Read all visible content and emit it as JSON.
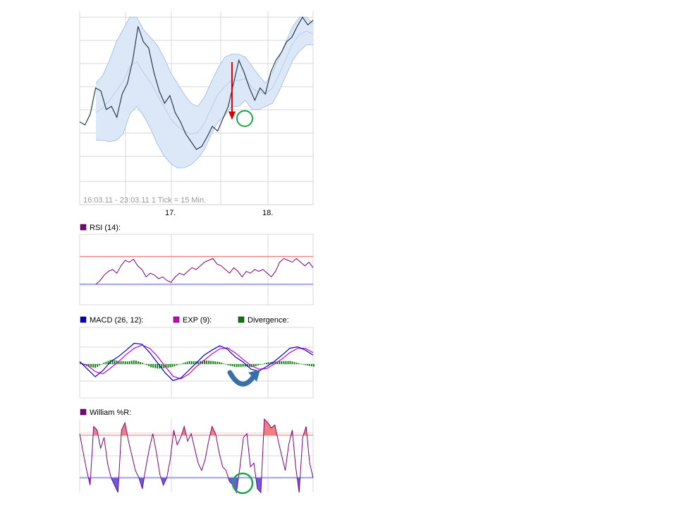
{
  "chart_data": [
    {
      "type": "line",
      "panel": "price",
      "footer": "16:03.11 - 23:03.11   1 Tick = 15 Min.",
      "x_tick_labels": [
        "17.",
        "18."
      ],
      "grid": true,
      "series": [
        {
          "role": "price",
          "color": "#2b3a4a",
          "values": [
            0.3,
            0.28,
            0.35,
            0.52,
            0.5,
            0.38,
            0.4,
            0.33,
            0.48,
            0.55,
            0.7,
            0.92,
            0.82,
            0.78,
            0.62,
            0.5,
            0.42,
            0.47,
            0.36,
            0.3,
            0.22,
            0.17,
            0.12,
            0.14,
            0.2,
            0.27,
            0.24,
            0.32,
            0.4,
            0.55,
            0.7,
            0.62,
            0.52,
            0.44,
            0.52,
            0.48,
            0.62,
            0.7,
            0.75,
            0.82,
            0.85,
            0.92,
            0.98,
            0.93,
            0.96
          ]
        },
        {
          "role": "band-upper",
          "color": "#a9c4e8",
          "values": [
            0.55,
            0.6,
            0.7,
            0.82,
            0.9,
            0.98,
            0.98,
            0.9,
            0.85,
            0.8,
            0.72,
            0.62,
            0.55,
            0.48,
            0.42,
            0.4,
            0.46,
            0.56,
            0.65,
            0.72,
            0.74,
            0.74,
            0.72,
            0.66,
            0.6,
            0.55,
            0.62,
            0.72,
            0.82,
            0.92,
            0.98,
            0.98,
            0.94
          ]
        },
        {
          "role": "band-lower",
          "color": "#a9c4e8",
          "values": [
            0.18,
            0.18,
            0.17,
            0.18,
            0.22,
            0.35,
            0.4,
            0.34,
            0.26,
            0.16,
            0.08,
            0.03,
            0.0,
            0.0,
            0.02,
            0.06,
            0.12,
            0.22,
            0.3,
            0.34,
            0.4,
            0.4,
            0.44,
            0.38,
            0.38,
            0.4,
            0.42,
            0.5,
            0.6,
            0.7,
            0.76,
            0.8,
            0.8
          ]
        },
        {
          "role": "band-middle",
          "color": "#b9cde8",
          "values": [
            0.36,
            0.39,
            0.44,
            0.5,
            0.56,
            0.66,
            0.69,
            0.62,
            0.56,
            0.48,
            0.4,
            0.32,
            0.27,
            0.24,
            0.22,
            0.23,
            0.29,
            0.39,
            0.48,
            0.53,
            0.57,
            0.57,
            0.58,
            0.52,
            0.49,
            0.48,
            0.52,
            0.61,
            0.71,
            0.81,
            0.87,
            0.89,
            0.87
          ]
        }
      ]
    },
    {
      "type": "line",
      "panel": "rsi",
      "legend": [
        {
          "label": "RSI (14):",
          "color": "#800080"
        }
      ],
      "reference_lines": {
        "upper": 0.85,
        "lower": 0.1
      },
      "grid": true,
      "values": [
        0.1,
        0.2,
        0.35,
        0.45,
        0.5,
        0.4,
        0.6,
        0.75,
        0.7,
        0.78,
        0.6,
        0.5,
        0.3,
        0.4,
        0.35,
        0.25,
        0.3,
        0.2,
        0.15,
        0.3,
        0.4,
        0.35,
        0.45,
        0.55,
        0.5,
        0.6,
        0.7,
        0.75,
        0.8,
        0.65,
        0.6,
        0.5,
        0.4,
        0.55,
        0.45,
        0.3,
        0.45,
        0.4,
        0.5,
        0.45,
        0.5,
        0.4,
        0.3,
        0.45,
        0.7,
        0.8,
        0.75,
        0.7,
        0.8,
        0.7,
        0.6,
        0.7,
        0.55
      ]
    },
    {
      "type": "line",
      "panel": "macd",
      "legend": [
        {
          "label": "MACD (26, 12):",
          "color": "#0000cc"
        },
        {
          "label": "EXP (9):",
          "color": "#cc00cc"
        },
        {
          "label": "Divergence:",
          "color": "#008000"
        }
      ],
      "grid": true,
      "series": [
        {
          "name": "MACD (26, 12):",
          "color": "#0000cc",
          "values": [
            0.1,
            -0.2,
            -0.5,
            -0.25,
            0.1,
            0.3,
            0.55,
            0.82,
            0.78,
            0.45,
            0.05,
            -0.35,
            -0.65,
            -0.55,
            -0.25,
            0.05,
            0.35,
            0.55,
            0.72,
            0.58,
            0.28,
            0.08,
            -0.2,
            -0.28,
            -0.1,
            0.1,
            0.35,
            0.62,
            0.68,
            0.55,
            0.35
          ]
        },
        {
          "name": "EXP (9):",
          "color": "#cc00cc",
          "values": [
            0.05,
            -0.05,
            -0.3,
            -0.38,
            -0.15,
            0.1,
            0.38,
            0.62,
            0.75,
            0.62,
            0.3,
            -0.1,
            -0.48,
            -0.58,
            -0.4,
            -0.1,
            0.15,
            0.4,
            0.6,
            0.64,
            0.44,
            0.18,
            -0.05,
            -0.2,
            -0.18,
            0.0,
            0.2,
            0.45,
            0.62,
            0.62,
            0.45
          ]
        },
        {
          "name": "Divergence:",
          "color": "#008000",
          "kind": "histogram",
          "values": [
            0.02,
            -0.1,
            -0.15,
            0.05,
            0.18,
            0.12,
            0.1,
            0.15,
            0.05,
            -0.12,
            -0.18,
            -0.16,
            -0.1,
            0.02,
            0.12,
            0.1,
            0.14,
            0.12,
            0.08,
            -0.05,
            -0.12,
            -0.1,
            -0.12,
            -0.04,
            0.06,
            0.1,
            0.12,
            0.12,
            0.04,
            -0.05,
            -0.1
          ]
        }
      ]
    },
    {
      "type": "line",
      "panel": "williams",
      "legend": [
        {
          "label": "William %R:",
          "color": "#800080"
        }
      ],
      "reference_lines": {
        "upper": 0.78,
        "lower": 0.2
      },
      "grid": true,
      "values": [
        0.8,
        0.55,
        0.3,
        0.1,
        0.9,
        0.85,
        0.6,
        0.75,
        0.4,
        0.2,
        0.1,
        0.0,
        0.85,
        0.95,
        0.7,
        0.5,
        0.3,
        0.2,
        0.05,
        0.35,
        0.6,
        0.8,
        0.55,
        0.25,
        0.1,
        0.2,
        0.45,
        0.85,
        0.65,
        0.75,
        0.9,
        0.7,
        0.8,
        0.6,
        0.4,
        0.3,
        0.45,
        0.7,
        0.9,
        0.8,
        0.55,
        0.35,
        0.3,
        0.15,
        0.1,
        0.0,
        0.35,
        0.75,
        0.8,
        0.35,
        0.4,
        0.05,
        0.0,
        1.0,
        0.95,
        0.88,
        0.92,
        0.7,
        0.5,
        0.3,
        0.65,
        0.85,
        0.35,
        0.0,
        0.75,
        0.9,
        0.4,
        0.2
      ]
    }
  ],
  "annotations": {
    "arrow_color": "#dd0000",
    "circle_color": "#1aa64a",
    "curved_arrow_color": "#3a6fa8"
  }
}
